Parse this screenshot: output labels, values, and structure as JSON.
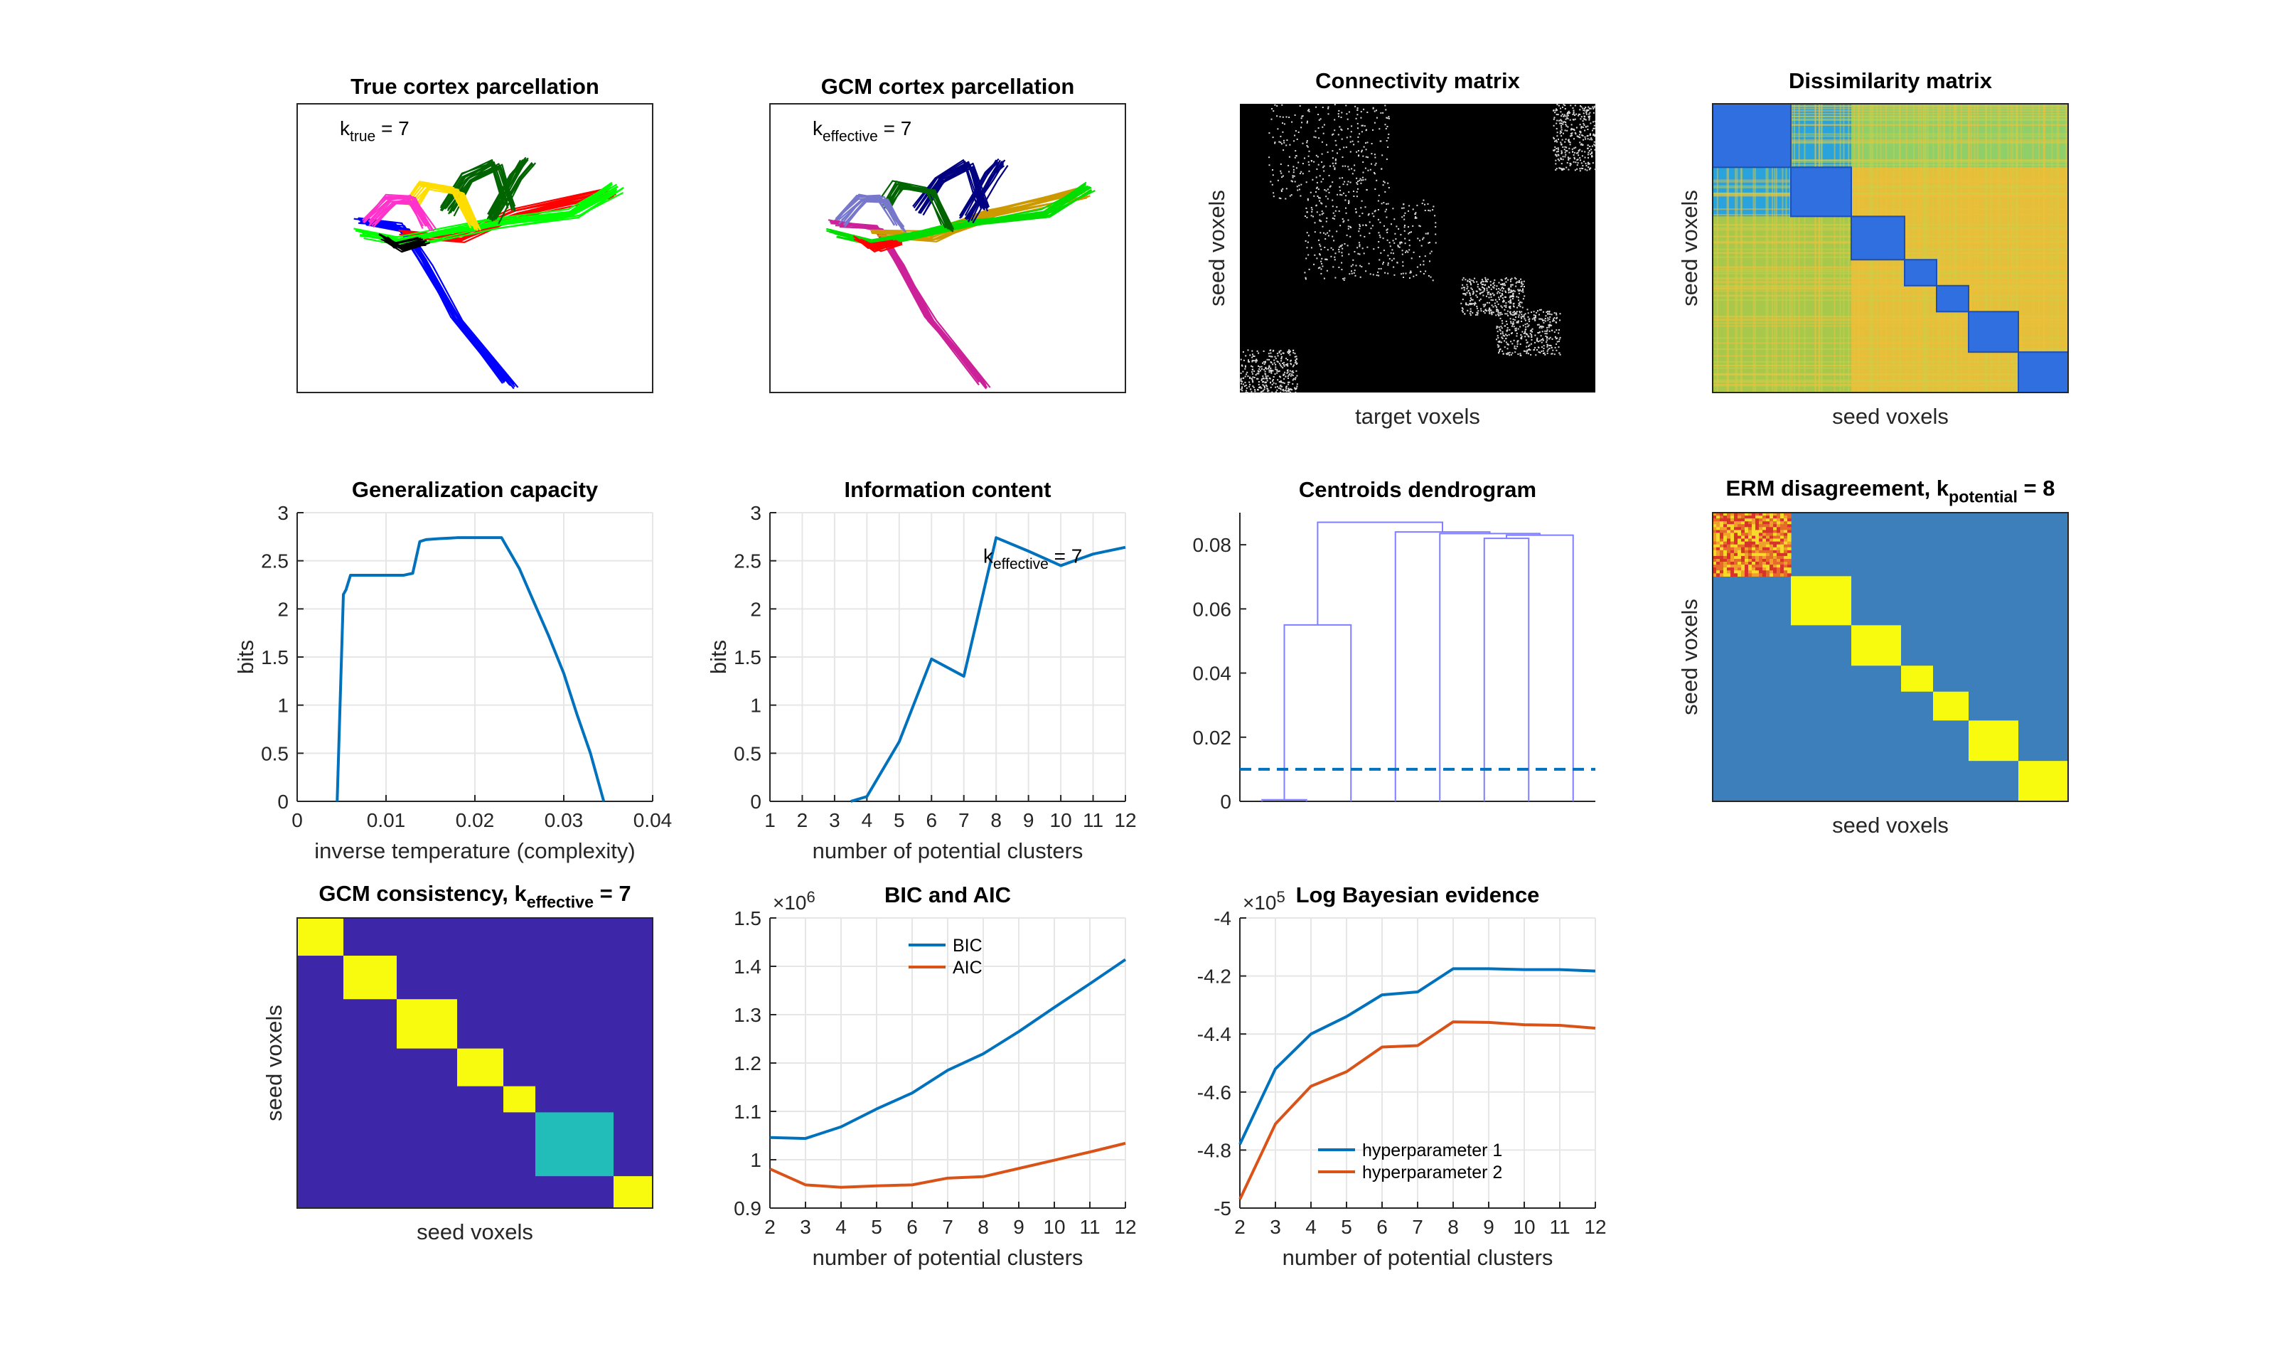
{
  "figure": {
    "panels": [
      {
        "id": "p1",
        "title": "True cortex parcellation",
        "annotation": {
          "k": "k",
          "sub": "true",
          "rest": " = 7"
        }
      },
      {
        "id": "p2",
        "title": "GCM cortex parcellation",
        "annotation": {
          "k": "k",
          "sub": "effective",
          "rest": " = 7"
        }
      },
      {
        "id": "p3",
        "title": "Connectivity matrix",
        "xlabel": "target voxels",
        "ylabel": "seed voxels"
      },
      {
        "id": "p4",
        "title": "Dissimilarity matrix",
        "xlabel": "seed voxels",
        "ylabel": "seed voxels"
      },
      {
        "id": "p8",
        "title_main": "ERM disagreement, k",
        "title_sub": "potential",
        "title_rest": " = 8",
        "xlabel": "seed voxels",
        "ylabel": "seed voxels"
      },
      {
        "id": "p9",
        "title_main": "GCM consistency, k",
        "title_sub": "effective",
        "title_rest": " = 7",
        "xlabel": "seed voxels",
        "ylabel": "seed voxels"
      }
    ],
    "colors": {
      "line_blue": "#0072BD",
      "line_red": "#D95319",
      "dendro": "#7f7fff",
      "yellow": "#F9FB0E",
      "cyan": "#23BDB9",
      "navy": "#3E26A8",
      "steel": "#3C7FBA",
      "black": "#000000"
    }
  },
  "chart_data": [
    {
      "id": "p5",
      "type": "line",
      "title": "Generalization capacity",
      "xlabel": "inverse temperature (complexity)",
      "ylabel": "bits",
      "xlim": [
        0,
        0.04
      ],
      "ylim": [
        0,
        3
      ],
      "xticks": [
        "0",
        "0.01",
        "0.02",
        "0.03",
        "0.04"
      ],
      "yticks": [
        "0",
        "0.5",
        "1",
        "1.5",
        "2",
        "2.5",
        "3"
      ],
      "grid": true,
      "series": [
        {
          "x": [
            0.0045,
            0.0052,
            0.0055,
            0.006,
            0.008,
            0.01,
            0.012,
            0.013,
            0.0138,
            0.0145,
            0.016,
            0.018,
            0.02,
            0.022,
            0.023,
            0.025,
            0.0265,
            0.0283,
            0.03,
            0.0315,
            0.033,
            0.0345
          ],
          "y": [
            0,
            2.15,
            2.2,
            2.35,
            2.35,
            2.35,
            2.35,
            2.37,
            2.7,
            2.72,
            2.73,
            2.74,
            2.74,
            2.74,
            2.74,
            2.42,
            2.1,
            1.72,
            1.33,
            0.9,
            0.5,
            0
          ]
        }
      ]
    },
    {
      "id": "p6",
      "type": "line",
      "title": "Information content",
      "xlabel": "number of potential clusters",
      "ylabel": "bits",
      "xlim": [
        1,
        12
      ],
      "ylim": [
        0,
        3
      ],
      "xticks": [
        "1",
        "2",
        "3",
        "4",
        "5",
        "6",
        "7",
        "8",
        "9",
        "10",
        "11",
        "12"
      ],
      "yticks": [
        "0",
        "0.5",
        "1",
        "1.5",
        "2",
        "2.5",
        "3"
      ],
      "grid": true,
      "annotation": {
        "k": "k",
        "sub": "effective",
        "rest": " = 7"
      },
      "series": [
        {
          "x": [
            3.5,
            4,
            5,
            6,
            7,
            8,
            9,
            10,
            11,
            12
          ],
          "y": [
            0,
            0.05,
            0.62,
            1.48,
            1.3,
            2.74,
            2.6,
            2.45,
            2.57,
            2.64
          ]
        }
      ]
    },
    {
      "id": "p7",
      "type": "dendrogram",
      "title": "Centroids dendrogram",
      "ylim": [
        0,
        0.09
      ],
      "yticks": [
        "0",
        "0.02",
        "0.04",
        "0.06",
        "0.08"
      ],
      "leaves": 8,
      "threshold": 0.01,
      "links": [
        {
          "l": 1.0,
          "r": 2.0,
          "lh": 0,
          "rh": 0,
          "h": 0.0005
        },
        {
          "l": 1.5,
          "r": 3.0,
          "lh": 0.0005,
          "rh": 0,
          "h": 0.055
        },
        {
          "l": 6.0,
          "r": 7.0,
          "lh": 0,
          "rh": 0,
          "h": 0.082
        },
        {
          "l": 6.5,
          "r": 8.0,
          "lh": 0.082,
          "rh": 0,
          "h": 0.083
        },
        {
          "l": 5.0,
          "r": 7.25,
          "lh": 0,
          "rh": 0.083,
          "h": 0.0835
        },
        {
          "l": 4.0,
          "r": 6.125,
          "lh": 0,
          "rh": 0.0835,
          "h": 0.084
        },
        {
          "l": 2.25,
          "r": 5.06,
          "lh": 0.055,
          "rh": 0.084,
          "h": 0.087
        }
      ]
    },
    {
      "id": "p10",
      "type": "line",
      "title": "BIC and AIC",
      "xlabel": "number of potential clusters",
      "xlim": [
        2,
        12
      ],
      "ylim": [
        0.9,
        1.5
      ],
      "xticks": [
        "2",
        "3",
        "4",
        "5",
        "6",
        "7",
        "8",
        "9",
        "10",
        "11",
        "12"
      ],
      "yticks": [
        "0.9",
        "1",
        "1.1",
        "1.2",
        "1.3",
        "1.4",
        "1.5"
      ],
      "exponent_base": "×10",
      "exponent_power": "6",
      "grid": true,
      "legend": "top",
      "series": [
        {
          "name": "BIC",
          "x": [
            2,
            3,
            4,
            5,
            6,
            7,
            8,
            9,
            10,
            11,
            12
          ],
          "y": [
            1.046,
            1.044,
            1.068,
            1.105,
            1.138,
            1.185,
            1.219,
            1.265,
            1.315,
            1.364,
            1.414
          ]
        },
        {
          "name": "AIC",
          "x": [
            2,
            3,
            4,
            5,
            6,
            7,
            8,
            9,
            10,
            11,
            12
          ],
          "y": [
            0.981,
            0.948,
            0.943,
            0.946,
            0.948,
            0.962,
            0.965,
            0.982,
            0.999,
            1.016,
            1.034
          ]
        }
      ]
    },
    {
      "id": "p11",
      "type": "line",
      "title": "Log Bayesian evidence",
      "xlabel": "number of potential clusters",
      "xlim": [
        2,
        12
      ],
      "ylim": [
        -5,
        -4
      ],
      "xticks": [
        "2",
        "3",
        "4",
        "5",
        "6",
        "7",
        "8",
        "9",
        "10",
        "11",
        "12"
      ],
      "yticks": [
        "-5",
        "-4.8",
        "-4.6",
        "-4.4",
        "-4.2",
        "-4"
      ],
      "exponent_base": "×10",
      "exponent_power": "5",
      "grid": true,
      "legend": "bottom",
      "series": [
        {
          "name": "hyperparameter 1",
          "x": [
            2,
            3,
            4,
            5,
            6,
            7,
            8,
            9,
            10,
            11,
            12
          ],
          "y": [
            -4.78,
            -4.52,
            -4.4,
            -4.34,
            -4.265,
            -4.255,
            -4.175,
            -4.175,
            -4.178,
            -4.178,
            -4.183
          ]
        },
        {
          "name": "hyperparameter 2",
          "x": [
            2,
            3,
            4,
            5,
            6,
            7,
            8,
            9,
            10,
            11,
            12
          ],
          "y": [
            -4.97,
            -4.71,
            -4.58,
            -4.53,
            -4.445,
            -4.44,
            -4.358,
            -4.36,
            -4.368,
            -4.37,
            -4.38
          ]
        }
      ]
    }
  ]
}
